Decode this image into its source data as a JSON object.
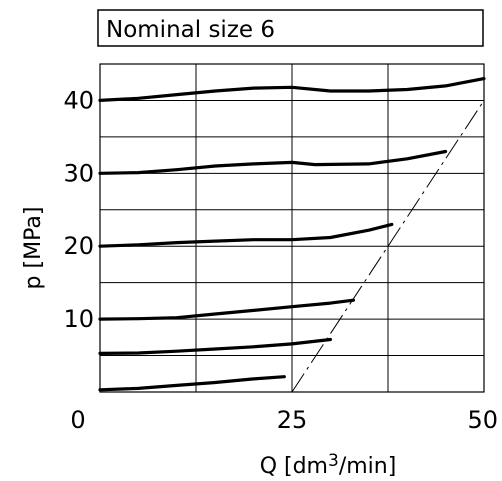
{
  "chart_data": {
    "type": "line",
    "title": "Nominal size 6",
    "xlabel": "Q  [dm",
    "xlabel_sup": "3",
    "xlabel_tail": "/min]",
    "ylabel": "p  [MPa]",
    "xlim": [
      0,
      50
    ],
    "ylim": [
      0,
      45
    ],
    "x_tick_labels": [
      "0",
      "25",
      "50"
    ],
    "y_tick_labels": [
      "10",
      "20",
      "30",
      "40"
    ],
    "grid": true,
    "colors": {
      "line": "#000000",
      "grid": "#000000"
    },
    "series": [
      {
        "x": [
          0,
          5,
          10,
          15,
          20,
          24
        ],
        "y": [
          0.3,
          0.5,
          0.9,
          1.3,
          1.8,
          2.1
        ]
      },
      {
        "x": [
          0,
          5,
          10,
          15,
          20,
          25,
          30
        ],
        "y": [
          5.3,
          5.35,
          5.6,
          5.9,
          6.2,
          6.6,
          7.2
        ]
      },
      {
        "x": [
          0,
          5,
          10,
          15,
          20,
          25,
          30,
          33
        ],
        "y": [
          10,
          10.05,
          10.2,
          10.7,
          11.2,
          11.7,
          12.2,
          12.6
        ]
      },
      {
        "x": [
          0,
          5,
          10,
          15,
          20,
          25,
          30,
          35,
          38
        ],
        "y": [
          20,
          20.2,
          20.5,
          20.7,
          20.9,
          20.9,
          21.2,
          22.2,
          23
        ]
      },
      {
        "x": [
          0,
          5,
          10,
          15,
          20,
          25,
          28,
          35,
          40,
          45
        ],
        "y": [
          30,
          30.1,
          30.5,
          31,
          31.3,
          31.5,
          31.2,
          31.3,
          32,
          33
        ]
      },
      {
        "x": [
          0,
          5,
          10,
          15,
          20,
          25,
          30,
          35,
          40,
          45,
          50
        ],
        "y": [
          40,
          40.3,
          40.8,
          41.3,
          41.7,
          41.8,
          41.3,
          41.3,
          41.5,
          42,
          43
        ]
      }
    ],
    "limit_line": {
      "style": "dash-dot",
      "x": [
        25,
        50
      ],
      "y": [
        0,
        40
      ]
    }
  }
}
